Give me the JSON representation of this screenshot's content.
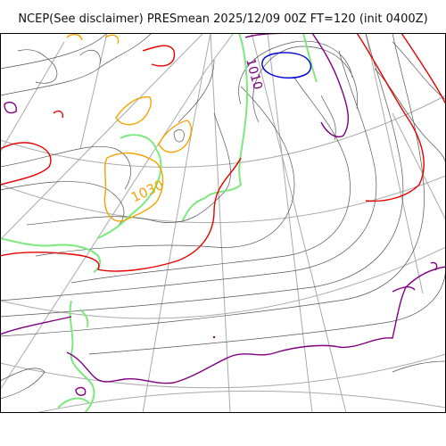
{
  "title": "NCEP(See disclaimer) PRESmean 2025/12/09 00Z FT=120 (init 0400Z)",
  "isobar_labels": {
    "high": "1030",
    "low": "1010"
  },
  "colors": {
    "isobar": "#555555",
    "isobar_1020": "#e60000",
    "isobar_1030": "#f2a400",
    "isobar_1010": "#800080",
    "isobar_1000": "#0000e0",
    "coastline": "#7de87d",
    "graticule": "#aaaaaa",
    "frame": "#000000"
  }
}
